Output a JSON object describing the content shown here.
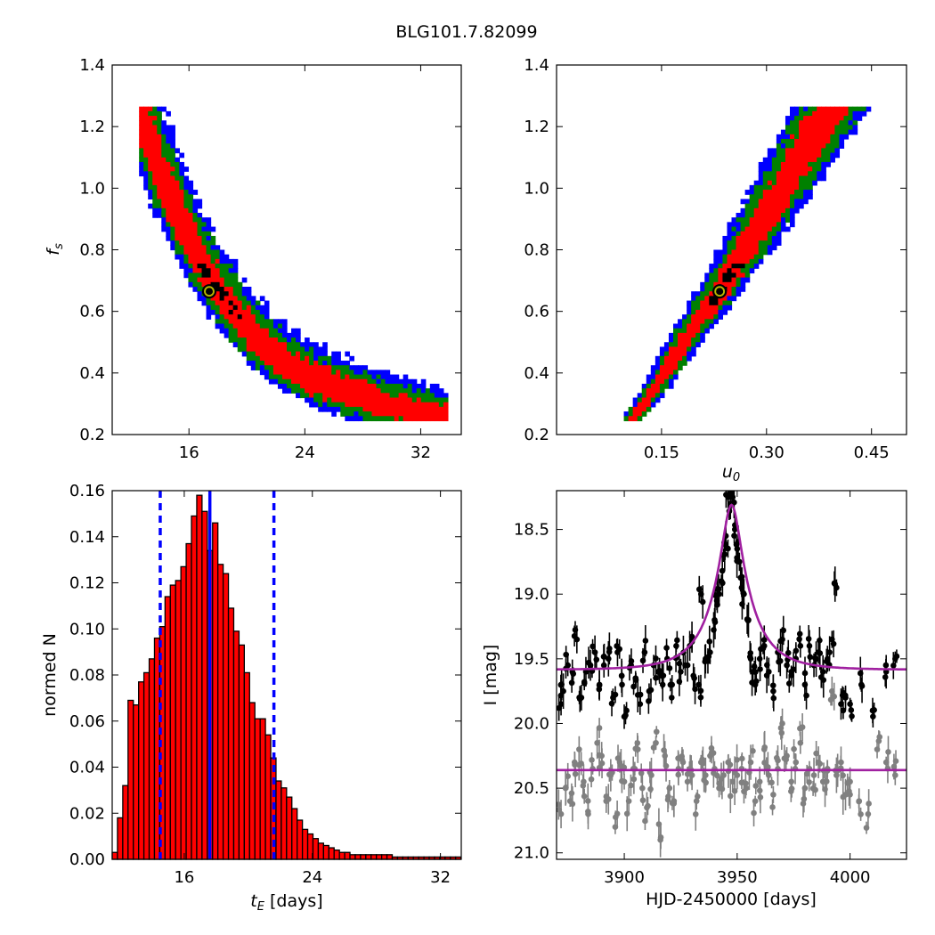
{
  "title": "BLG101.7.82099",
  "colors": {
    "ci_outer": "#0000ff",
    "ci_mid": "#008000",
    "ci_inner": "#ff0000",
    "best_cells": "#000000",
    "best_marker_fill": "#b8b800",
    "hist_bar": "#ff0000",
    "hist_lines": "#0000ff",
    "model": "#a020a0",
    "data_main": "#000000",
    "data_ref": "#808080"
  },
  "chart_data": [
    {
      "type": "heatmap",
      "panel": "top-left",
      "xlabel": "",
      "ylabel": "f_s",
      "xlim": [
        10.7,
        34.8
      ],
      "ylim": [
        0.2,
        1.4
      ],
      "xticks": [
        "16",
        "24",
        "32"
      ],
      "yticks": [
        "0.2",
        "0.4",
        "0.6",
        "0.8",
        "1.0",
        "1.2",
        "1.4"
      ],
      "best_fit": {
        "x": 17.4,
        "y": 0.665
      },
      "band_ridge": [
        [
          12.5,
          1.27
        ],
        [
          13.5,
          1.12
        ],
        [
          14.5,
          1.0
        ],
        [
          15.5,
          0.89
        ],
        [
          16.5,
          0.79
        ],
        [
          18,
          0.67
        ],
        [
          20,
          0.54
        ],
        [
          22,
          0.45
        ],
        [
          24,
          0.39
        ],
        [
          26,
          0.35
        ],
        [
          28,
          0.32
        ],
        [
          30,
          0.29
        ],
        [
          32,
          0.27
        ],
        [
          34,
          0.25
        ]
      ]
    },
    {
      "type": "heatmap",
      "panel": "top-right",
      "xlabel": "u_0",
      "ylabel": "",
      "xlim": [
        0.0,
        0.5
      ],
      "ylim": [
        0.2,
        1.4
      ],
      "xticks": [
        "0.15",
        "0.30",
        "0.45"
      ],
      "yticks": [
        "0.2",
        "0.4",
        "0.6",
        "0.8",
        "1.0",
        "1.2",
        "1.4"
      ],
      "best_fit": {
        "x": 0.233,
        "y": 0.665
      },
      "band_ridge": [
        [
          0.11,
          0.25
        ],
        [
          0.15,
          0.38
        ],
        [
          0.19,
          0.53
        ],
        [
          0.233,
          0.665
        ],
        [
          0.27,
          0.8
        ],
        [
          0.31,
          0.95
        ],
        [
          0.35,
          1.1
        ],
        [
          0.385,
          1.23
        ],
        [
          0.4,
          1.27
        ]
      ]
    },
    {
      "type": "bar",
      "panel": "bottom-left",
      "xlabel": "t_E [days]",
      "ylabel": "normed N",
      "xlim": [
        11.5,
        33.3
      ],
      "ylim": [
        0.0,
        0.16
      ],
      "xticks": [
        "16",
        "24",
        "32"
      ],
      "yticks": [
        "0.00",
        "0.02",
        "0.04",
        "0.06",
        "0.08",
        "0.10",
        "0.12",
        "0.14",
        "0.16"
      ],
      "bin_start": 11.5,
      "bin_width": 0.33,
      "values": [
        0.003,
        0.018,
        0.032,
        0.069,
        0.067,
        0.077,
        0.081,
        0.087,
        0.096,
        0.101,
        0.114,
        0.119,
        0.121,
        0.127,
        0.137,
        0.149,
        0.158,
        0.151,
        0.134,
        0.146,
        0.128,
        0.124,
        0.109,
        0.099,
        0.093,
        0.081,
        0.068,
        0.061,
        0.061,
        0.054,
        0.044,
        0.034,
        0.031,
        0.027,
        0.022,
        0.017,
        0.013,
        0.011,
        0.009,
        0.007,
        0.006,
        0.005,
        0.004,
        0.003,
        0.003,
        0.002,
        0.002,
        0.002,
        0.002,
        0.002,
        0.002,
        0.002,
        0.002,
        0.001,
        0.001,
        0.001,
        0.001,
        0.001,
        0.001,
        0.001,
        0.001,
        0.001,
        0.001,
        0.001,
        0.001,
        0.001
      ],
      "median": 17.6,
      "ci_low": 14.5,
      "ci_high": 21.6
    },
    {
      "type": "scatter",
      "panel": "bottom-right",
      "xlabel": "HJD-2450000 [days]",
      "ylabel": "I [mag]",
      "xlim": [
        3870,
        4025
      ],
      "ylim": [
        21.05,
        18.2
      ],
      "xticks": [
        "3900",
        "3950",
        "4000"
      ],
      "yticks": [
        "18.5",
        "19.0",
        "19.5",
        "20.0",
        "20.5",
        "21.0"
      ],
      "model": {
        "t0": 3947.5,
        "tE": 17.4,
        "u0": 0.233,
        "baseline": 19.585,
        "peak": 18.31
      },
      "reference_model": {
        "baseline": 20.36
      },
      "main_series_samples": [
        [
          3872,
          19.85
        ],
        [
          3873,
          19.75
        ],
        [
          3875,
          19.55
        ],
        [
          3877,
          19.6
        ],
        [
          3879,
          19.35
        ],
        [
          3881,
          19.8
        ],
        [
          3883,
          19.6
        ],
        [
          3885,
          19.55
        ],
        [
          3887,
          19.45
        ],
        [
          3889,
          19.7
        ],
        [
          3891,
          19.55
        ],
        [
          3893,
          19.5
        ],
        [
          3895,
          19.8
        ],
        [
          3897,
          19.45
        ],
        [
          3899,
          19.7
        ],
        [
          3901,
          19.9
        ],
        [
          3903,
          19.55
        ],
        [
          3905,
          19.65
        ],
        [
          3907,
          19.85
        ],
        [
          3909,
          19.45
        ],
        [
          3911,
          19.75
        ],
        [
          3913,
          19.55
        ],
        [
          3915,
          19.6
        ],
        [
          3917,
          19.7
        ],
        [
          3919,
          19.5
        ],
        [
          3921,
          19.8
        ],
        [
          3923,
          19.4
        ],
        [
          3925,
          19.6
        ],
        [
          3927,
          19.55
        ],
        [
          3929,
          19.4
        ],
        [
          3931,
          19.65
        ],
        [
          3933,
          19.7
        ],
        [
          3934,
          19.0
        ],
        [
          3936,
          19.5
        ],
        [
          3938,
          19.45
        ],
        [
          3940,
          19.2
        ],
        [
          3941,
          19.05
        ],
        [
          3942,
          19.0
        ],
        [
          3943,
          18.9
        ],
        [
          3944,
          18.7
        ],
        [
          3945,
          18.55
        ],
        [
          3946,
          18.25
        ],
        [
          3947,
          18.3
        ],
        [
          3948,
          18.25
        ],
        [
          3949,
          18.5
        ],
        [
          3950,
          18.65
        ],
        [
          3951,
          18.75
        ],
        [
          3952,
          18.95
        ],
        [
          3953,
          19.0
        ],
        [
          3955,
          19.2
        ],
        [
          3956,
          19.5
        ],
        [
          3957,
          19.6
        ],
        [
          3958,
          19.7
        ],
        [
          3960,
          19.5
        ],
        [
          3962,
          19.4
        ],
        [
          3964,
          19.6
        ],
        [
          3966,
          19.75
        ],
        [
          3968,
          19.45
        ],
        [
          3970,
          19.35
        ],
        [
          3972,
          19.55
        ],
        [
          3974,
          19.6
        ],
        [
          3976,
          19.5
        ],
        [
          3978,
          19.4
        ],
        [
          3980,
          19.7
        ],
        [
          3982,
          19.4
        ],
        [
          3984,
          19.55
        ],
        [
          3986,
          19.45
        ],
        [
          3988,
          19.6
        ],
        [
          3990,
          19.5
        ],
        [
          3992,
          19.35
        ],
        [
          3994,
          18.95
        ],
        [
          3996,
          19.85
        ],
        [
          3998,
          19.8
        ],
        [
          4000,
          19.85
        ],
        [
          4005,
          19.7
        ],
        [
          4010,
          19.9
        ],
        [
          4016,
          19.6
        ],
        [
          4020,
          19.5
        ]
      ],
      "reference_series_samples": [
        [
          3872,
          20.7
        ],
        [
          3874,
          20.5
        ],
        [
          3876,
          20.6
        ],
        [
          3878,
          20.3
        ],
        [
          3880,
          20.2
        ],
        [
          3882,
          20.45
        ],
        [
          3884,
          20.7
        ],
        [
          3886,
          20.35
        ],
        [
          3888,
          20.15
        ],
        [
          3890,
          20.25
        ],
        [
          3892,
          20.6
        ],
        [
          3894,
          20.4
        ],
        [
          3896,
          20.8
        ],
        [
          3898,
          20.3
        ],
        [
          3900,
          20.45
        ],
        [
          3902,
          20.6
        ],
        [
          3904,
          20.35
        ],
        [
          3906,
          20.2
        ],
        [
          3908,
          20.5
        ],
        [
          3910,
          20.65
        ],
        [
          3912,
          20.4
        ],
        [
          3914,
          20.15
        ],
        [
          3916,
          20.9
        ],
        [
          3918,
          20.25
        ],
        [
          3920,
          20.5
        ],
        [
          3922,
          20.6
        ],
        [
          3924,
          20.35
        ],
        [
          3926,
          20.3
        ],
        [
          3928,
          20.45
        ],
        [
          3930,
          20.4
        ],
        [
          3932,
          20.6
        ],
        [
          3934,
          20.3
        ],
        [
          3936,
          20.4
        ],
        [
          3938,
          20.25
        ],
        [
          3940,
          20.35
        ],
        [
          3942,
          20.5
        ],
        [
          3944,
          20.4
        ],
        [
          3946,
          20.3
        ],
        [
          3948,
          20.45
        ],
        [
          3950,
          20.4
        ],
        [
          3952,
          20.35
        ],
        [
          3954,
          20.5
        ],
        [
          3956,
          20.3
        ],
        [
          3958,
          20.6
        ],
        [
          3960,
          20.45
        ],
        [
          3962,
          20.2
        ],
        [
          3964,
          20.4
        ],
        [
          3966,
          20.55
        ],
        [
          3968,
          20.35
        ],
        [
          3970,
          20.0
        ],
        [
          3972,
          20.25
        ],
        [
          3974,
          20.45
        ],
        [
          3976,
          20.3
        ],
        [
          3978,
          20.15
        ],
        [
          3980,
          20.5
        ],
        [
          3982,
          20.35
        ],
        [
          3984,
          20.4
        ],
        [
          3986,
          20.3
        ],
        [
          3988,
          20.45
        ],
        [
          3990,
          20.35
        ],
        [
          3992,
          19.75
        ],
        [
          3994,
          20.4
        ],
        [
          3996,
          20.3
        ],
        [
          3998,
          20.55
        ],
        [
          4000,
          20.45
        ],
        [
          4004,
          20.6
        ],
        [
          4008,
          20.7
        ],
        [
          4012,
          20.2
        ],
        [
          4016,
          20.3
        ],
        [
          4020,
          20.4
        ]
      ]
    }
  ]
}
